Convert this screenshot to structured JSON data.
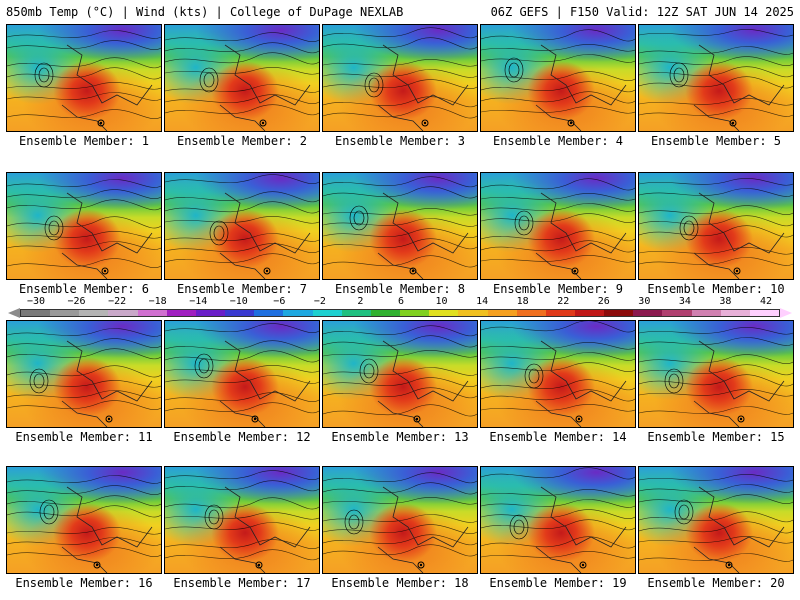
{
  "header": {
    "title_left": "850mb Temp (°C) | Wind (kts) | College of DuPage NEXLAB",
    "title_right": "06Z GEFS | F150 Valid: 12Z SAT JUN 14 2025"
  },
  "panels": [
    {
      "label": "Ensemble Member: 1"
    },
    {
      "label": "Ensemble Member: 2"
    },
    {
      "label": "Ensemble Member: 3"
    },
    {
      "label": "Ensemble Member: 4"
    },
    {
      "label": "Ensemble Member: 5"
    },
    {
      "label": "Ensemble Member: 6"
    },
    {
      "label": "Ensemble Member: 7"
    },
    {
      "label": "Ensemble Member: 8"
    },
    {
      "label": "Ensemble Member: 9"
    },
    {
      "label": "Ensemble Member: 10"
    },
    {
      "label": "Ensemble Member: 11"
    },
    {
      "label": "Ensemble Member: 12"
    },
    {
      "label": "Ensemble Member: 13"
    },
    {
      "label": "Ensemble Member: 14"
    },
    {
      "label": "Ensemble Member: 15"
    },
    {
      "label": "Ensemble Member: 16"
    },
    {
      "label": "Ensemble Member: 17"
    },
    {
      "label": "Ensemble Member: 18"
    },
    {
      "label": "Ensemble Member: 19"
    },
    {
      "label": "Ensemble Member: 20"
    }
  ],
  "colorbar": {
    "labels": [
      "−30",
      "−26",
      "−22",
      "−18",
      "−14",
      "−10",
      "−6",
      "−2",
      "2",
      "6",
      "10",
      "14",
      "18",
      "22",
      "26",
      "30",
      "34",
      "38",
      "42"
    ],
    "colors": [
      "#7a7a7a",
      "#9a9a9a",
      "#b4b4b4",
      "#c9a8c9",
      "#d070d0",
      "#a020c0",
      "#6a1fc8",
      "#3a3ad0",
      "#2070e0",
      "#1fa8e0",
      "#1fd0d0",
      "#20c080",
      "#30b030",
      "#80d020",
      "#e0e020",
      "#f0c020",
      "#f5a020",
      "#f07020",
      "#e03a1a",
      "#c01818",
      "#8c0c0c",
      "#8c1a50",
      "#b04070",
      "#d080b0",
      "#e8b0d8",
      "#ffd0ff"
    ]
  },
  "colors": {
    "background": "#ffffff",
    "warm_core": "#c41a1a",
    "cool_north": "#6a2bc4"
  }
}
